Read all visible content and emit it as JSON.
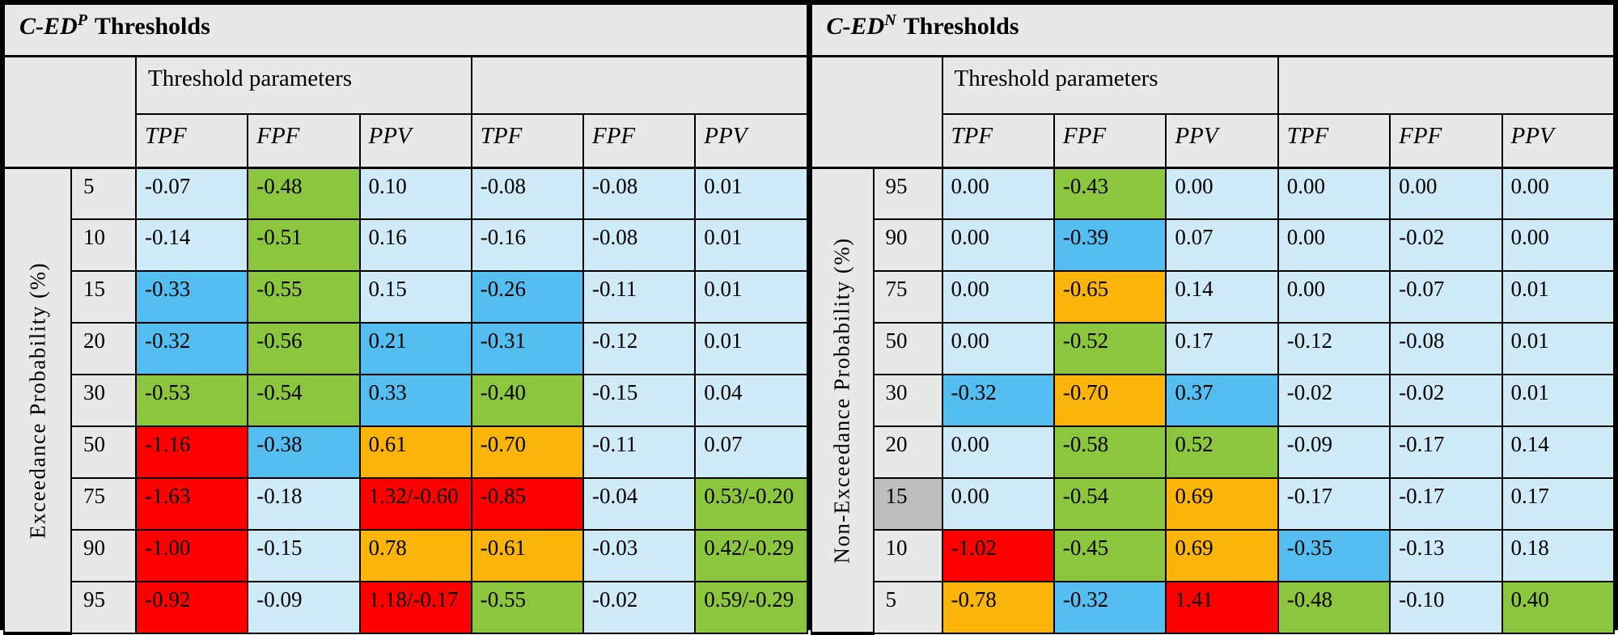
{
  "palette": {
    "lightblue": "#CFEBF7",
    "blue": "#55BEF0",
    "green": "#8CC63E",
    "orange": "#FBB40A",
    "red": "#FE0000",
    "header_gray": "#E8E8E8",
    "label_gray": "#BDBDBD"
  },
  "tables": [
    {
      "title_prefix": "C-ED",
      "title_sup": "P",
      "title_suffix": "Thresholds",
      "group_header": "Threshold parameters",
      "col_headers": [
        "TPF",
        "FPF",
        "PPV",
        "TPF",
        "FPF",
        "PPV"
      ],
      "side_label": "Exceedance Probability (%)",
      "rows": [
        {
          "label": "5",
          "label_gray": false,
          "cells": [
            {
              "v": "-0.07",
              "c": "lightblue"
            },
            {
              "v": "-0.48",
              "c": "green"
            },
            {
              "v": "0.10",
              "c": "lightblue"
            },
            {
              "v": "-0.08",
              "c": "lightblue"
            },
            {
              "v": "-0.08",
              "c": "lightblue"
            },
            {
              "v": "0.01",
              "c": "lightblue"
            }
          ]
        },
        {
          "label": "10",
          "label_gray": false,
          "cells": [
            {
              "v": "-0.14",
              "c": "lightblue"
            },
            {
              "v": "-0.51",
              "c": "green"
            },
            {
              "v": "0.16",
              "c": "lightblue"
            },
            {
              "v": "-0.16",
              "c": "lightblue"
            },
            {
              "v": "-0.08",
              "c": "lightblue"
            },
            {
              "v": "0.01",
              "c": "lightblue"
            }
          ]
        },
        {
          "label": "15",
          "label_gray": false,
          "cells": [
            {
              "v": "-0.33",
              "c": "blue"
            },
            {
              "v": "-0.55",
              "c": "green"
            },
            {
              "v": "0.15",
              "c": "lightblue"
            },
            {
              "v": "-0.26",
              "c": "blue"
            },
            {
              "v": "-0.11",
              "c": "lightblue"
            },
            {
              "v": "0.01",
              "c": "lightblue"
            }
          ]
        },
        {
          "label": "20",
          "label_gray": false,
          "cells": [
            {
              "v": "-0.32",
              "c": "blue"
            },
            {
              "v": "-0.56",
              "c": "green"
            },
            {
              "v": "0.21",
              "c": "blue"
            },
            {
              "v": "-0.31",
              "c": "blue"
            },
            {
              "v": "-0.12",
              "c": "lightblue"
            },
            {
              "v": "0.01",
              "c": "lightblue"
            }
          ]
        },
        {
          "label": "30",
          "label_gray": false,
          "cells": [
            {
              "v": "-0.53",
              "c": "green"
            },
            {
              "v": "-0.54",
              "c": "green"
            },
            {
              "v": "0.33",
              "c": "blue"
            },
            {
              "v": "-0.40",
              "c": "green"
            },
            {
              "v": "-0.15",
              "c": "lightblue"
            },
            {
              "v": "0.04",
              "c": "lightblue"
            }
          ]
        },
        {
          "label": "50",
          "label_gray": false,
          "cells": [
            {
              "v": "-1.16",
              "c": "red"
            },
            {
              "v": "-0.38",
              "c": "blue"
            },
            {
              "v": "0.61",
              "c": "orange"
            },
            {
              "v": "-0.70",
              "c": "orange"
            },
            {
              "v": "-0.11",
              "c": "lightblue"
            },
            {
              "v": "0.07",
              "c": "lightblue"
            }
          ]
        },
        {
          "label": "75",
          "label_gray": false,
          "cells": [
            {
              "v": "-1.63",
              "c": "red"
            },
            {
              "v": "-0.18",
              "c": "lightblue"
            },
            {
              "v": "1.32/-0.60",
              "c": "red"
            },
            {
              "v": "-0.85",
              "c": "red"
            },
            {
              "v": "-0.04",
              "c": "lightblue"
            },
            {
              "v": "0.53/-0.20",
              "c": "green"
            }
          ]
        },
        {
          "label": "90",
          "label_gray": false,
          "cells": [
            {
              "v": "-1.00",
              "c": "red"
            },
            {
              "v": "-0.15",
              "c": "lightblue"
            },
            {
              "v": "0.78",
              "c": "orange"
            },
            {
              "v": "-0.61",
              "c": "orange"
            },
            {
              "v": "-0.03",
              "c": "lightblue"
            },
            {
              "v": "0.42/-0.29",
              "c": "green"
            }
          ]
        },
        {
          "label": "95",
          "label_gray": false,
          "cells": [
            {
              "v": "-0.92",
              "c": "red"
            },
            {
              "v": "-0.09",
              "c": "lightblue"
            },
            {
              "v": "1.18/-0.17",
              "c": "red"
            },
            {
              "v": "-0.55",
              "c": "green"
            },
            {
              "v": "-0.02",
              "c": "lightblue"
            },
            {
              "v": "0.59/-0.29",
              "c": "green"
            }
          ]
        }
      ]
    },
    {
      "title_prefix": "C-ED",
      "title_sup": "N",
      "title_suffix": "Thresholds",
      "group_header": "Threshold parameters",
      "col_headers": [
        "TPF",
        "FPF",
        "PPV",
        "TPF",
        "FPF",
        "PPV"
      ],
      "side_label": "Non-Exceedance Probability (%)",
      "rows": [
        {
          "label": "95",
          "label_gray": false,
          "cells": [
            {
              "v": "0.00",
              "c": "lightblue"
            },
            {
              "v": "-0.43",
              "c": "green"
            },
            {
              "v": "0.00",
              "c": "lightblue"
            },
            {
              "v": "0.00",
              "c": "lightblue"
            },
            {
              "v": "0.00",
              "c": "lightblue"
            },
            {
              "v": "0.00",
              "c": "lightblue"
            }
          ]
        },
        {
          "label": "90",
          "label_gray": false,
          "cells": [
            {
              "v": "0.00",
              "c": "lightblue"
            },
            {
              "v": "-0.39",
              "c": "blue"
            },
            {
              "v": "0.07",
              "c": "lightblue"
            },
            {
              "v": "0.00",
              "c": "lightblue"
            },
            {
              "v": "-0.02",
              "c": "lightblue"
            },
            {
              "v": "0.00",
              "c": "lightblue"
            }
          ]
        },
        {
          "label": "75",
          "label_gray": false,
          "cells": [
            {
              "v": "0.00",
              "c": "lightblue"
            },
            {
              "v": "-0.65",
              "c": "orange"
            },
            {
              "v": "0.14",
              "c": "lightblue"
            },
            {
              "v": "0.00",
              "c": "lightblue"
            },
            {
              "v": "-0.07",
              "c": "lightblue"
            },
            {
              "v": "0.01",
              "c": "lightblue"
            }
          ]
        },
        {
          "label": "50",
          "label_gray": false,
          "cells": [
            {
              "v": "0.00",
              "c": "lightblue"
            },
            {
              "v": "-0.52",
              "c": "green"
            },
            {
              "v": "0.17",
              "c": "lightblue"
            },
            {
              "v": "-0.12",
              "c": "lightblue"
            },
            {
              "v": "-0.08",
              "c": "lightblue"
            },
            {
              "v": "0.01",
              "c": "lightblue"
            }
          ]
        },
        {
          "label": "30",
          "label_gray": false,
          "cells": [
            {
              "v": "-0.32",
              "c": "blue"
            },
            {
              "v": "-0.70",
              "c": "orange"
            },
            {
              "v": "0.37",
              "c": "blue"
            },
            {
              "v": "-0.02",
              "c": "lightblue"
            },
            {
              "v": "-0.02",
              "c": "lightblue"
            },
            {
              "v": "0.01",
              "c": "lightblue"
            }
          ]
        },
        {
          "label": "20",
          "label_gray": false,
          "cells": [
            {
              "v": "0.00",
              "c": "lightblue"
            },
            {
              "v": "-0.58",
              "c": "green"
            },
            {
              "v": "0.52",
              "c": "green"
            },
            {
              "v": "-0.09",
              "c": "lightblue"
            },
            {
              "v": "-0.17",
              "c": "lightblue"
            },
            {
              "v": "0.14",
              "c": "lightblue"
            }
          ]
        },
        {
          "label": "15",
          "label_gray": true,
          "cells": [
            {
              "v": "0.00",
              "c": "lightblue"
            },
            {
              "v": "-0.54",
              "c": "green"
            },
            {
              "v": "0.69",
              "c": "orange"
            },
            {
              "v": "-0.17",
              "c": "lightblue"
            },
            {
              "v": "-0.17",
              "c": "lightblue"
            },
            {
              "v": "0.17",
              "c": "lightblue"
            }
          ]
        },
        {
          "label": "10",
          "label_gray": false,
          "cells": [
            {
              "v": "-1.02",
              "c": "red"
            },
            {
              "v": "-0.45",
              "c": "green"
            },
            {
              "v": "0.69",
              "c": "orange"
            },
            {
              "v": "-0.35",
              "c": "blue"
            },
            {
              "v": "-0.13",
              "c": "lightblue"
            },
            {
              "v": "0.18",
              "c": "lightblue"
            }
          ]
        },
        {
          "label": "5",
          "label_gray": false,
          "cells": [
            {
              "v": "-0.78",
              "c": "orange"
            },
            {
              "v": "-0.32",
              "c": "blue"
            },
            {
              "v": "1.41",
              "c": "red"
            },
            {
              "v": "-0.48",
              "c": "green"
            },
            {
              "v": "-0.10",
              "c": "lightblue"
            },
            {
              "v": "0.40",
              "c": "green"
            }
          ]
        }
      ]
    }
  ]
}
